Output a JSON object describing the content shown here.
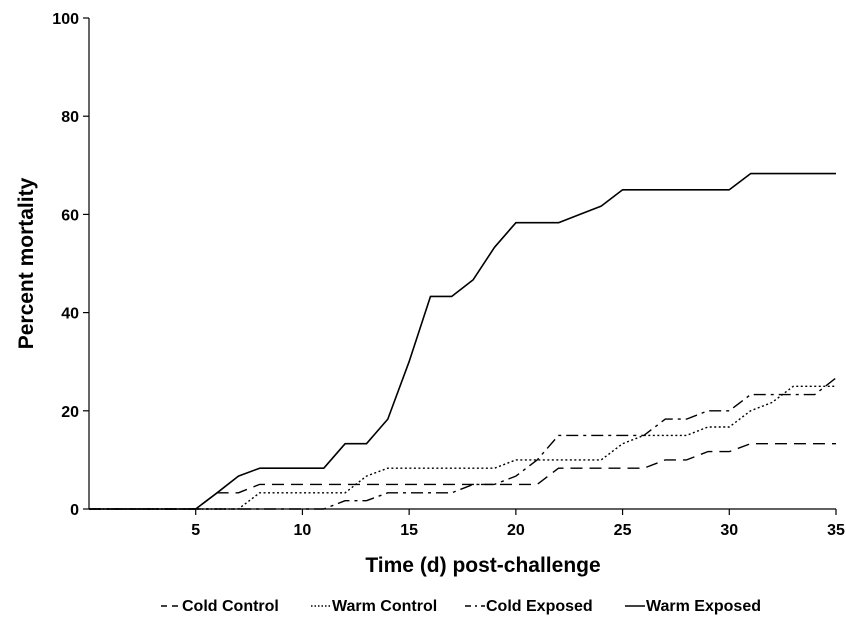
{
  "chart_data": {
    "type": "line",
    "title": "",
    "xlabel": "Time (d) post-challenge",
    "ylabel": "Percent mortality",
    "xlim": [
      0,
      35
    ],
    "ylim": [
      0,
      100
    ],
    "x_ticks": [
      5,
      10,
      15,
      20,
      25,
      30,
      35
    ],
    "y_ticks": [
      0,
      20,
      40,
      60,
      80,
      100
    ],
    "x_tick_labels": [
      "5",
      "10",
      "15",
      "20",
      "25",
      "30",
      "35"
    ],
    "y_tick_labels": [
      "0",
      "20",
      "40",
      "60",
      "80",
      "100"
    ],
    "grid": false,
    "legend_position": "bottom",
    "series": [
      {
        "name": "Cold Control",
        "dash": "dashed",
        "color": "#000000",
        "points": [
          [
            0,
            0
          ],
          [
            5,
            0
          ],
          [
            6,
            3.3
          ],
          [
            7,
            3.3
          ],
          [
            8,
            5
          ],
          [
            21,
            5
          ],
          [
            22,
            8.3
          ],
          [
            26,
            8.3
          ],
          [
            27,
            10
          ],
          [
            28,
            10
          ],
          [
            29,
            11.7
          ],
          [
            30,
            11.7
          ],
          [
            31,
            13.3
          ],
          [
            35,
            13.3
          ]
        ]
      },
      {
        "name": "Warm Control",
        "dash": "dotted",
        "color": "#000000",
        "points": [
          [
            0,
            0
          ],
          [
            7,
            0
          ],
          [
            8,
            3.3
          ],
          [
            12,
            3.3
          ],
          [
            13,
            6.7
          ],
          [
            14,
            8.3
          ],
          [
            19,
            8.3
          ],
          [
            20,
            10
          ],
          [
            24,
            10
          ],
          [
            25,
            13.3
          ],
          [
            26,
            15
          ],
          [
            28,
            15
          ],
          [
            29,
            16.7
          ],
          [
            30,
            16.7
          ],
          [
            31,
            20
          ],
          [
            32,
            21.7
          ],
          [
            33,
            25
          ],
          [
            35,
            25
          ]
        ]
      },
      {
        "name": "Cold Exposed",
        "dash": "dashdot",
        "color": "#000000",
        "points": [
          [
            0,
            0
          ],
          [
            11,
            0
          ],
          [
            12,
            1.7
          ],
          [
            13,
            1.7
          ],
          [
            14,
            3.3
          ],
          [
            16,
            3.3
          ],
          [
            17,
            3.3
          ],
          [
            18,
            5
          ],
          [
            19,
            5
          ],
          [
            20,
            6.7
          ],
          [
            21,
            10
          ],
          [
            22,
            15
          ],
          [
            26,
            15
          ],
          [
            27,
            18.3
          ],
          [
            28,
            18.3
          ],
          [
            29,
            20
          ],
          [
            30,
            20
          ],
          [
            31,
            23.3
          ],
          [
            34,
            23.3
          ],
          [
            35,
            26.7
          ]
        ]
      },
      {
        "name": "Warm Exposed",
        "dash": "solid",
        "color": "#000000",
        "points": [
          [
            0,
            0
          ],
          [
            5,
            0
          ],
          [
            6,
            3.3
          ],
          [
            7,
            6.7
          ],
          [
            8,
            8.3
          ],
          [
            11,
            8.3
          ],
          [
            12,
            13.3
          ],
          [
            13,
            13.3
          ],
          [
            14,
            18.3
          ],
          [
            15,
            30
          ],
          [
            16,
            43.3
          ],
          [
            17,
            43.3
          ],
          [
            18,
            46.7
          ],
          [
            19,
            53.3
          ],
          [
            20,
            58.3
          ],
          [
            22,
            58.3
          ],
          [
            23,
            60
          ],
          [
            24,
            61.7
          ],
          [
            25,
            65
          ],
          [
            30,
            65
          ],
          [
            31,
            68.3
          ],
          [
            35,
            68.3
          ]
        ]
      }
    ]
  }
}
